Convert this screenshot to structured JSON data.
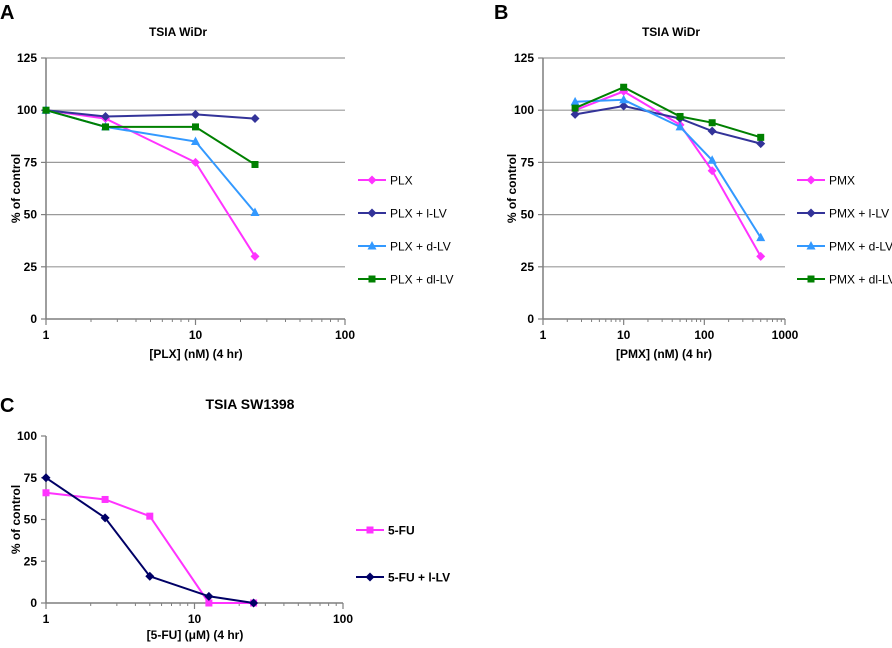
{
  "chart_data": [
    {
      "panel_label": "A",
      "type": "line",
      "title": "TSIA WiDr",
      "xlabel": "[PLX] (nM) (4 hr)",
      "ylabel": "% of control",
      "xscale": "log",
      "xlim": [
        1,
        100
      ],
      "ylim": [
        0,
        125
      ],
      "xticks": [
        1,
        10,
        100
      ],
      "yticks": [
        0,
        25,
        50,
        75,
        100,
        125
      ],
      "grid": "horizontal",
      "legend_position": "right",
      "series": [
        {
          "name": "PLX",
          "color": "#ff33ff",
          "marker": "diamond",
          "x": [
            1,
            2.5,
            10,
            25
          ],
          "y": [
            100,
            96,
            75,
            30
          ]
        },
        {
          "name": "PLX + l-LV",
          "color": "#333399",
          "marker": "diamond",
          "x": [
            1,
            2.5,
            10,
            25
          ],
          "y": [
            100,
            97,
            98,
            96
          ]
        },
        {
          "name": "PLX + d-LV",
          "color": "#3399ff",
          "marker": "triangle",
          "x": [
            1,
            2.5,
            10,
            25
          ],
          "y": [
            100,
            92,
            85,
            51
          ]
        },
        {
          "name": "PLX + dl-LV",
          "color": "#008000",
          "marker": "square",
          "x": [
            1,
            2.5,
            10,
            25
          ],
          "y": [
            100,
            92,
            92,
            74
          ]
        }
      ]
    },
    {
      "panel_label": "B",
      "type": "line",
      "title": "TSIA WiDr",
      "xlabel": "[PMX] (nM) (4 hr)",
      "ylabel": "% of control",
      "xscale": "log",
      "xlim": [
        1,
        1000
      ],
      "ylim": [
        0,
        125
      ],
      "xticks": [
        1,
        10,
        100,
        1000
      ],
      "yticks": [
        0,
        25,
        50,
        75,
        100,
        125
      ],
      "grid": "horizontal",
      "legend_position": "right",
      "series": [
        {
          "name": "PMX",
          "color": "#ff33ff",
          "marker": "diamond",
          "x": [
            2.5,
            10,
            50,
            125,
            500
          ],
          "y": [
            100,
            109,
            93,
            71,
            30
          ]
        },
        {
          "name": "PMX + l-LV",
          "color": "#333399",
          "marker": "diamond",
          "x": [
            2.5,
            10,
            50,
            125,
            500
          ],
          "y": [
            98,
            102,
            96,
            90,
            84
          ]
        },
        {
          "name": "PMX + d-LV",
          "color": "#3399ff",
          "marker": "triangle",
          "x": [
            2.5,
            10,
            50,
            125,
            500
          ],
          "y": [
            104,
            105,
            92,
            76,
            39
          ]
        },
        {
          "name": "PMX + dl-LV",
          "color": "#008000",
          "marker": "square",
          "x": [
            2.5,
            10,
            50,
            125,
            500
          ],
          "y": [
            101,
            111,
            97,
            94,
            87
          ]
        }
      ]
    },
    {
      "panel_label": "C",
      "type": "line",
      "title": "TSIA SW1398",
      "xlabel": "[5-FU] (μM) (4 hr)",
      "ylabel": "% of control",
      "xscale": "log",
      "xlim": [
        1,
        100
      ],
      "ylim": [
        0,
        100
      ],
      "xticks": [
        1,
        10,
        100
      ],
      "yticks": [
        0,
        25,
        50,
        75,
        100
      ],
      "grid": "none",
      "legend_position": "right",
      "series": [
        {
          "name": "5-FU",
          "color": "#ff33ff",
          "marker": "square",
          "x": [
            1,
            2.5,
            5,
            12.5,
            25
          ],
          "y": [
            66,
            62,
            52,
            0,
            0
          ]
        },
        {
          "name": "5-FU + l-LV",
          "color": "#000066",
          "marker": "diamond",
          "x": [
            1,
            2.5,
            5,
            12.5,
            25
          ],
          "y": [
            75,
            51,
            16,
            4,
            0
          ]
        }
      ]
    }
  ]
}
